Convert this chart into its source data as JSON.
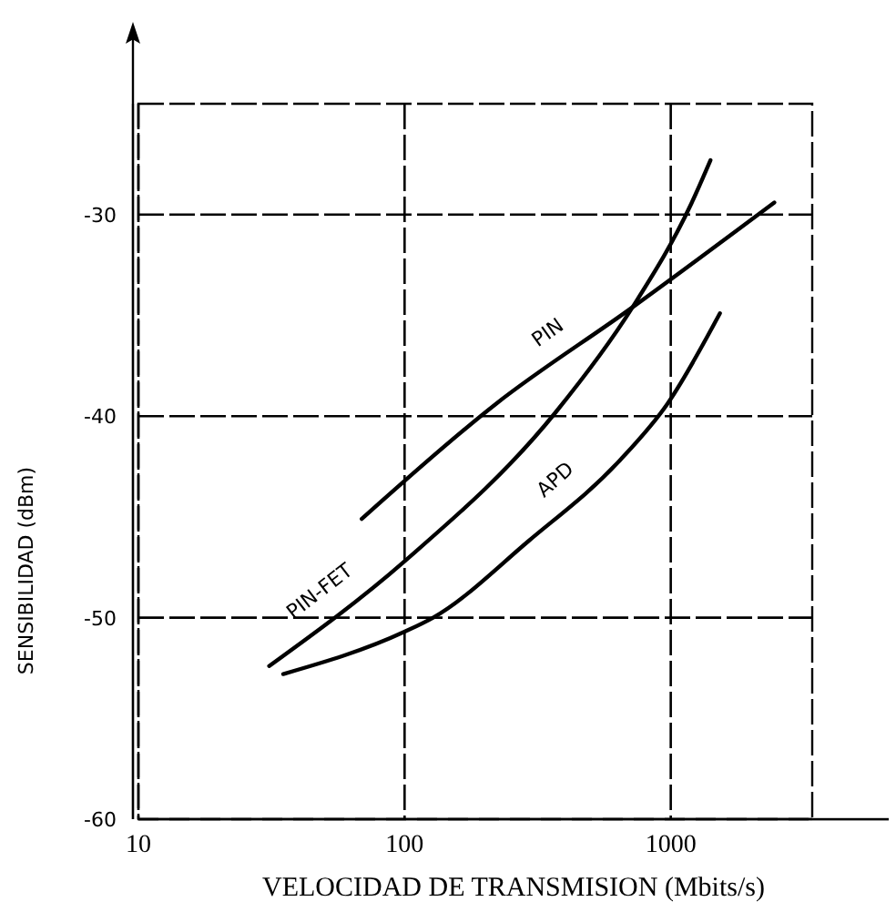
{
  "chart_data": {
    "type": "line",
    "xlabel": "VELOCIDAD DE TRANSMISION (Mbits/s)",
    "ylabel": "SENSIBILIDAD (dBm)",
    "log": "x",
    "xlim": [
      10,
      3400
    ],
    "ylim": [
      -60,
      -24.5
    ],
    "xticks": [
      10,
      100,
      1000
    ],
    "yticks": [
      -60,
      -50,
      -40,
      -30
    ],
    "grid": true,
    "marker": "none",
    "series": [
      {
        "name": "PIN",
        "color": "#000000",
        "x": [
          69,
          220,
          718,
          2450
        ],
        "values": [
          -45.1,
          -39.4,
          -34.6,
          -29.4
        ]
      },
      {
        "name": "PIN-FET",
        "color": "#000000",
        "x": [
          31,
          100,
          370,
          718,
          1200,
          1410
        ],
        "values": [
          -52.4,
          -47.2,
          -39.8,
          -34.6,
          -29.4,
          -27.3
        ]
      },
      {
        "name": "APD",
        "color": "#000000",
        "x": [
          35,
          100,
          128,
          292,
          643,
          970,
          1530
        ],
        "values": [
          -52.8,
          -50.7,
          -50,
          -46.2,
          -42.2,
          -39.4,
          -34.9
        ]
      }
    ]
  }
}
